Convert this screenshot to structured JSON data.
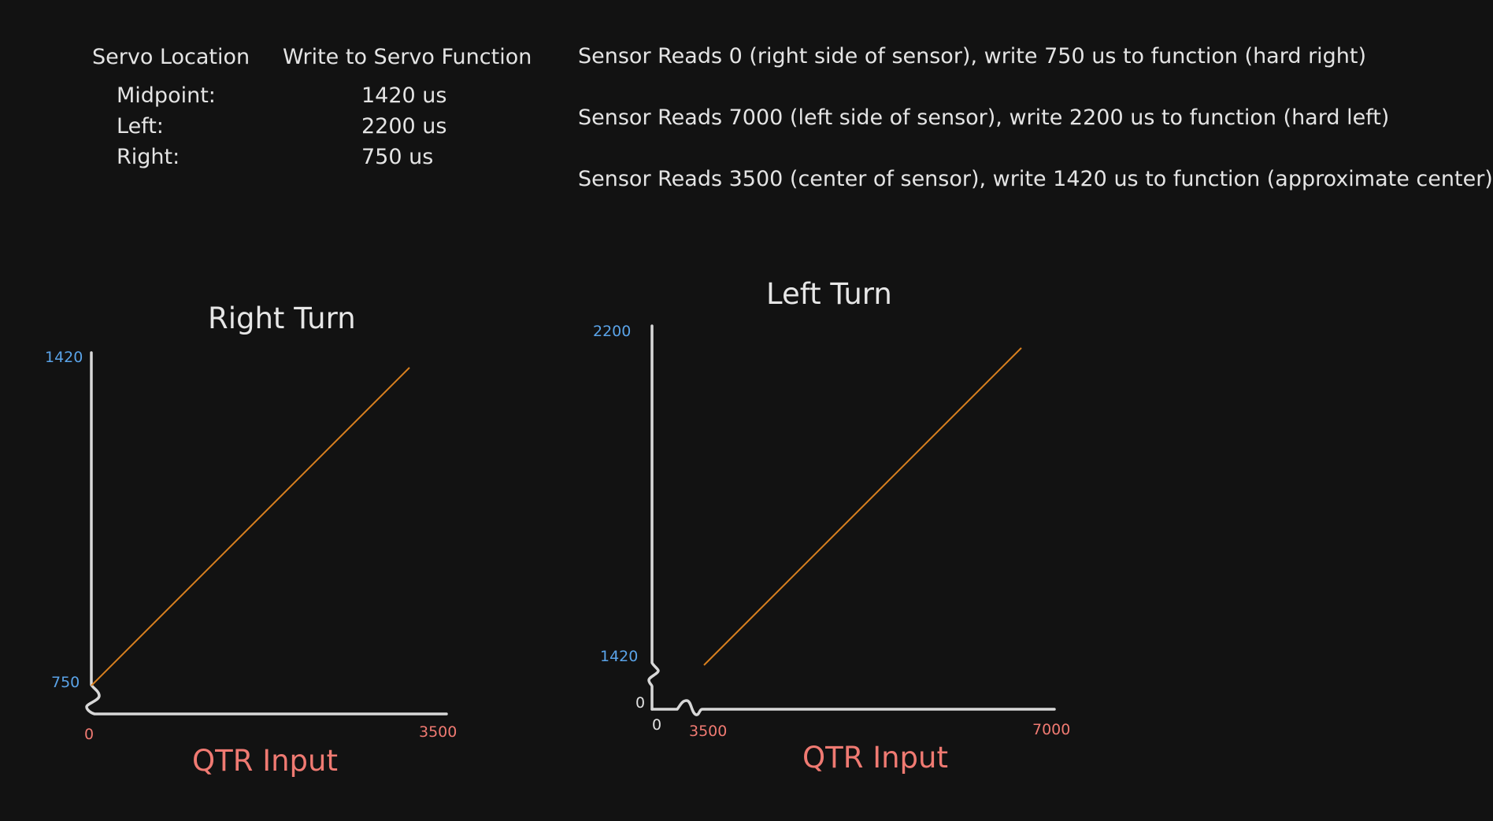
{
  "table": {
    "headers": [
      "Servo Location",
      "Write to Servo Function"
    ],
    "rows": [
      {
        "location": "Midpoint:",
        "value": "1420 us"
      },
      {
        "location": "Left:",
        "value": "2200 us"
      },
      {
        "location": "Right:",
        "value": "750 us"
      }
    ]
  },
  "notes": [
    "Sensor Reads 0 (right side of sensor), write 750 us to function (hard right)",
    "Sensor Reads 7000 (left side of sensor), write 2200 us to function (hard left)",
    "Sensor Reads 3500 (center of sensor), write 1420 us to function (approximate center)"
  ],
  "right_turn": {
    "title": "Right Turn",
    "y_top": "1420",
    "y_bottom": "750",
    "x_left": "0",
    "x_right": "3500",
    "xlabel": "QTR Input"
  },
  "left_turn": {
    "title": "Left Turn",
    "y_top": "2200",
    "y_mid": "1420",
    "y_origin": "0",
    "x_origin": "0",
    "x_left": "3500",
    "x_right": "7000",
    "xlabel": "QTR Input"
  },
  "colors": {
    "background": "#121212",
    "axis": "#d8d8d8",
    "line": "#d9801f",
    "y_tick": "#5aa3e8",
    "x_tick": "#f07a72"
  }
}
